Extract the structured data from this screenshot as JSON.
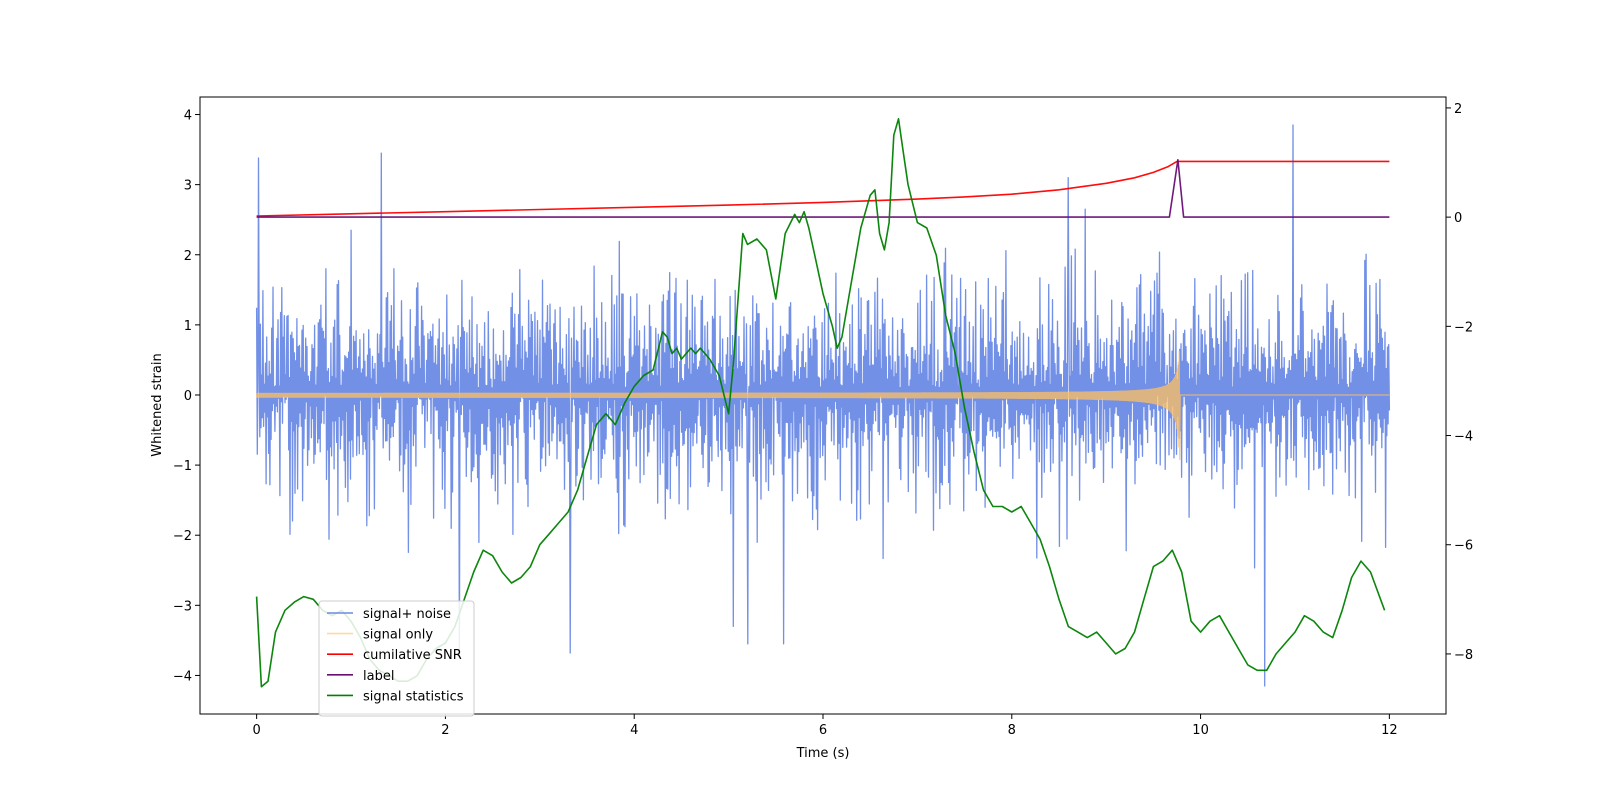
{
  "chart_data": {
    "type": "line",
    "title": "",
    "xlabel": "Time (s)",
    "ylabel": "Whitened strain",
    "y2label": "",
    "xlim": [
      -0.6,
      12.6
    ],
    "ylim": [
      -4.55,
      4.25
    ],
    "y2lim": [
      -9.1,
      2.2
    ],
    "xticks": [
      0,
      2,
      4,
      6,
      8,
      10,
      12
    ],
    "xtick_labels": [
      "0",
      "2",
      "4",
      "6",
      "8",
      "10",
      "12"
    ],
    "yticks": [
      -4,
      -3,
      -2,
      -1,
      0,
      1,
      2,
      3,
      4
    ],
    "ytick_labels": [
      "−4",
      "−3",
      "−2",
      "−1",
      "0",
      "1",
      "2",
      "3",
      "4"
    ],
    "y2ticks": [
      -8,
      -6,
      -4,
      -2,
      0,
      2
    ],
    "y2tick_labels": [
      "−8",
      "−6",
      "−4",
      "−2",
      "0",
      "2"
    ],
    "legend_position": "lower-left",
    "series": [
      {
        "name": "signal+ noise",
        "color": "#6b8ae6",
        "axis": "left",
        "kind": "noise",
        "sample_count": 1800,
        "x_range": [
          0,
          12
        ],
        "typical_envelope": [
          -2.1,
          2.3
        ],
        "extremes": {
          "max": 3.85,
          "min": -4.15
        },
        "spikes": [
          [
            0.02,
            3.38
          ],
          [
            1.32,
            3.45
          ],
          [
            10.98,
            3.85
          ],
          [
            3.32,
            -3.68
          ],
          [
            10.68,
            -4.15
          ],
          [
            5.2,
            -3.55
          ],
          [
            5.58,
            -3.55
          ],
          [
            5.05,
            -3.3
          ],
          [
            2.15,
            -3.7
          ],
          [
            8.6,
            3.1
          ]
        ]
      },
      {
        "name": "signal only",
        "color": "#ffc060",
        "axis": "left",
        "kind": "chirp",
        "x_range": [
          0,
          12
        ],
        "chirp_end": 9.78,
        "amplitude_start": 0.02,
        "amplitude_peak_pos": 0.78,
        "amplitude_peak_neg": -1.08
      },
      {
        "name": "cumilative SNR",
        "color": "#ff0000",
        "axis": "right",
        "x": [
          0,
          1,
          2,
          3,
          4,
          5,
          6,
          7,
          7.5,
          8,
          8.5,
          9,
          9.3,
          9.5,
          9.65,
          9.75,
          9.78,
          10,
          11,
          12
        ],
        "values": [
          0.02,
          0.06,
          0.1,
          0.14,
          0.18,
          0.22,
          0.27,
          0.33,
          0.37,
          0.42,
          0.5,
          0.62,
          0.72,
          0.82,
          0.92,
          1.02,
          1.02,
          1.02,
          1.02,
          1.02
        ]
      },
      {
        "name": "label",
        "color": "#6a0d75",
        "axis": "right",
        "x": [
          0,
          9.67,
          9.76,
          9.82,
          12
        ],
        "values": [
          0,
          0,
          1.05,
          0,
          0
        ]
      },
      {
        "name": "signal statistics",
        "color": "#008000",
        "axis": "right",
        "x": [
          0,
          0.05,
          0.12,
          0.2,
          0.3,
          0.4,
          0.5,
          0.6,
          0.7,
          0.8,
          0.9,
          1.0,
          1.1,
          1.2,
          1.3,
          1.4,
          1.5,
          1.6,
          1.7,
          1.8,
          1.9,
          2.0,
          2.1,
          2.2,
          2.3,
          2.4,
          2.5,
          2.6,
          2.7,
          2.8,
          2.9,
          3.0,
          3.1,
          3.2,
          3.3,
          3.4,
          3.5,
          3.6,
          3.7,
          3.8,
          3.9,
          4.0,
          4.1,
          4.2,
          4.3,
          4.35,
          4.4,
          4.45,
          4.5,
          4.55,
          4.6,
          4.65,
          4.7,
          4.8,
          4.9,
          5.0,
          5.05,
          5.15,
          5.2,
          5.3,
          5.4,
          5.5,
          5.6,
          5.7,
          5.75,
          5.8,
          5.85,
          5.9,
          6.0,
          6.1,
          6.15,
          6.2,
          6.3,
          6.4,
          6.5,
          6.55,
          6.6,
          6.65,
          6.7,
          6.75,
          6.8,
          6.85,
          6.9,
          7.0,
          7.1,
          7.2,
          7.3,
          7.4,
          7.5,
          7.6,
          7.7,
          7.8,
          7.9,
          8.0,
          8.1,
          8.2,
          8.3,
          8.4,
          8.5,
          8.6,
          8.7,
          8.8,
          8.9,
          9.0,
          9.1,
          9.2,
          9.3,
          9.4,
          9.5,
          9.6,
          9.7,
          9.8,
          9.9,
          10.0,
          10.1,
          10.2,
          10.3,
          10.4,
          10.5,
          10.6,
          10.7,
          10.8,
          10.9,
          11.0,
          11.1,
          11.2,
          11.3,
          11.4,
          11.5,
          11.6,
          11.7,
          11.8,
          11.95
        ],
        "values": [
          -6.95,
          -8.6,
          -8.5,
          -7.6,
          -7.2,
          -7.05,
          -6.95,
          -7.0,
          -7.2,
          -7.3,
          -7.2,
          -7.4,
          -7.7,
          -8.1,
          -8.3,
          -8.4,
          -8.5,
          -8.5,
          -8.4,
          -8.1,
          -7.9,
          -7.8,
          -7.5,
          -7.0,
          -6.5,
          -6.1,
          -6.2,
          -6.5,
          -6.7,
          -6.6,
          -6.4,
          -6.0,
          -5.8,
          -5.6,
          -5.4,
          -5.0,
          -4.4,
          -3.8,
          -3.6,
          -3.8,
          -3.4,
          -3.1,
          -2.9,
          -2.8,
          -2.1,
          -2.2,
          -2.5,
          -2.4,
          -2.6,
          -2.5,
          -2.4,
          -2.5,
          -2.4,
          -2.6,
          -2.9,
          -3.6,
          -2.7,
          -0.3,
          -0.5,
          -0.4,
          -0.6,
          -1.5,
          -0.3,
          0.05,
          -0.1,
          0.1,
          -0.2,
          -0.6,
          -1.4,
          -2.0,
          -2.4,
          -2.2,
          -1.2,
          -0.2,
          0.4,
          0.5,
          -0.3,
          -0.6,
          -0.1,
          1.5,
          1.8,
          1.2,
          0.6,
          -0.1,
          -0.2,
          -0.7,
          -1.8,
          -2.5,
          -3.5,
          -4.3,
          -5.0,
          -5.3,
          -5.3,
          -5.4,
          -5.3,
          -5.6,
          -5.9,
          -6.4,
          -7.0,
          -7.5,
          -7.6,
          -7.7,
          -7.6,
          -7.8,
          -8.0,
          -7.9,
          -7.6,
          -7.0,
          -6.4,
          -6.3,
          -6.1,
          -6.5,
          -7.4,
          -7.6,
          -7.4,
          -7.3,
          -7.6,
          -7.9,
          -8.2,
          -8.3,
          -8.3,
          -8.0,
          -7.8,
          -7.6,
          -7.3,
          -7.4,
          -7.6,
          -7.7,
          -7.2,
          -6.6,
          -6.3,
          -6.5,
          -7.2
        ]
      }
    ]
  }
}
